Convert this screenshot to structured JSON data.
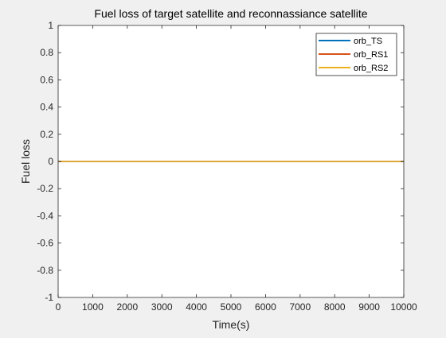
{
  "chart_data": {
    "type": "line",
    "title": "Fuel loss of target satellite and reconnassiance satellite",
    "xlabel": "Time(s)",
    "ylabel": "Fuel loss",
    "xlim": [
      0,
      10000
    ],
    "ylim": [
      -1,
      1
    ],
    "xticks": [
      "0",
      "1000",
      "2000",
      "3000",
      "4000",
      "5000",
      "6000",
      "7000",
      "8000",
      "9000",
      "10000"
    ],
    "yticks": [
      "-1",
      "-0.8",
      "-0.6",
      "-0.4",
      "-0.2",
      "0",
      "0.2",
      "0.4",
      "0.6",
      "0.8",
      "1"
    ],
    "grid": false,
    "legend_location": "top-right",
    "series": [
      {
        "name": "orb_TS",
        "color": "#0072BD",
        "x": [
          0,
          10000
        ],
        "y": [
          0,
          0
        ]
      },
      {
        "name": "orb_RS1",
        "color": "#D95319",
        "x": [
          0,
          10000
        ],
        "y": [
          0,
          0
        ]
      },
      {
        "name": "orb_RS2",
        "color": "#EDB120",
        "x": [
          0,
          10000
        ],
        "y": [
          0,
          0
        ]
      }
    ]
  }
}
